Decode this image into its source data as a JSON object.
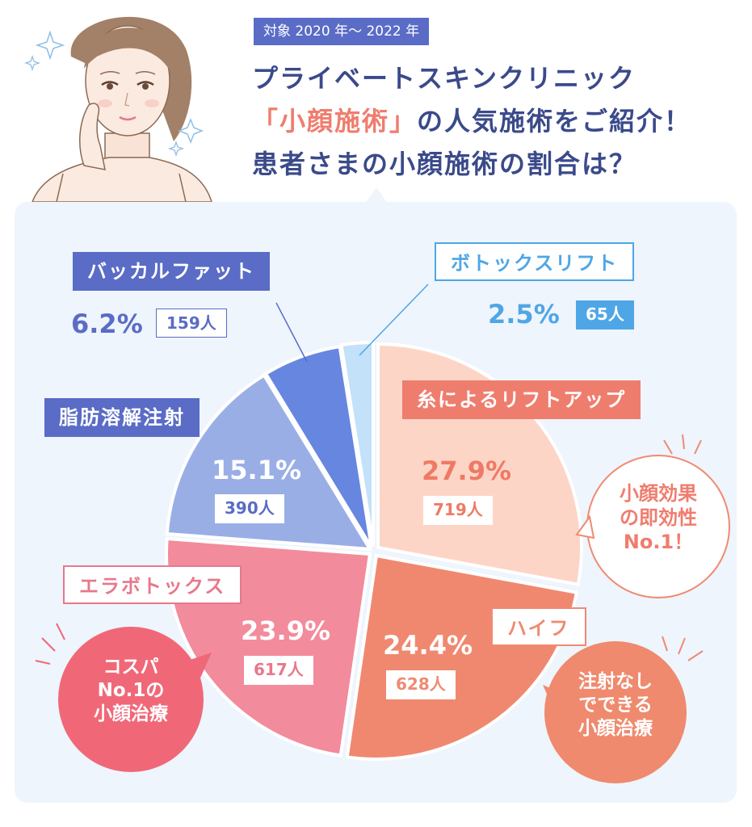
{
  "header": {
    "period": "対象 2020 年～ 2022 年",
    "title_line1": "プライベートスキンクリニック",
    "title_line2_highlight": "「小顔施術」",
    "title_line2_rest": "の人気施術をご紹介！",
    "title_line3": "患者さまの小顔施術の割合は？"
  },
  "chart_data": {
    "type": "pie",
    "unit_percent": "%",
    "unit_count": "人",
    "slices": [
      {
        "label": "糸によるリフトアップ",
        "percent": 27.9,
        "count": 719,
        "color": "#fdd5c6",
        "label_color": "#ee7a65"
      },
      {
        "label": "ハイフ",
        "percent": 24.4,
        "count": 628,
        "color": "#f08870",
        "label_color": "#ef8a72"
      },
      {
        "label": "エラボトックス",
        "percent": 23.9,
        "count": 617,
        "color": "#f28b9c",
        "label_color": "#e8788c"
      },
      {
        "label": "脂肪溶解注射",
        "percent": 15.1,
        "count": 390,
        "color": "#9aaee6",
        "label_color": "#5a6cc6"
      },
      {
        "label": "バッカルファット",
        "percent": 6.2,
        "count": 159,
        "color": "#6686df",
        "label_color": "#5a6cc6"
      },
      {
        "label": "ボトックスリフト",
        "percent": 2.5,
        "count": 65,
        "color": "#c3e1f8",
        "label_color": "#4fa6e6"
      }
    ]
  },
  "labels": {
    "ito_pct": "27.9%",
    "ito_cnt": "719人",
    "hifu_pct": "24.4%",
    "hifu_cnt": "628人",
    "era_pct": "23.9%",
    "era_cnt": "617人",
    "shibo_pct": "15.1%",
    "shibo_cnt": "390人",
    "buccal_pct": "6.2%",
    "buccal_cnt": "159人",
    "botox_pct": "2.5%",
    "botox_cnt": "65人"
  },
  "bubbles": {
    "ito": "小顔効果\nの即効性\nNo.1！",
    "hifu": "注射なし\nでできる\n小顔治療",
    "era": "コスパ\nNo.1の\n小顔治療"
  },
  "colors": {
    "navy": "#3a4a8a",
    "accent_blue": "#5a6cc6",
    "accent_coral": "#ef7d6e",
    "panel_bg": "#eef5fc"
  }
}
